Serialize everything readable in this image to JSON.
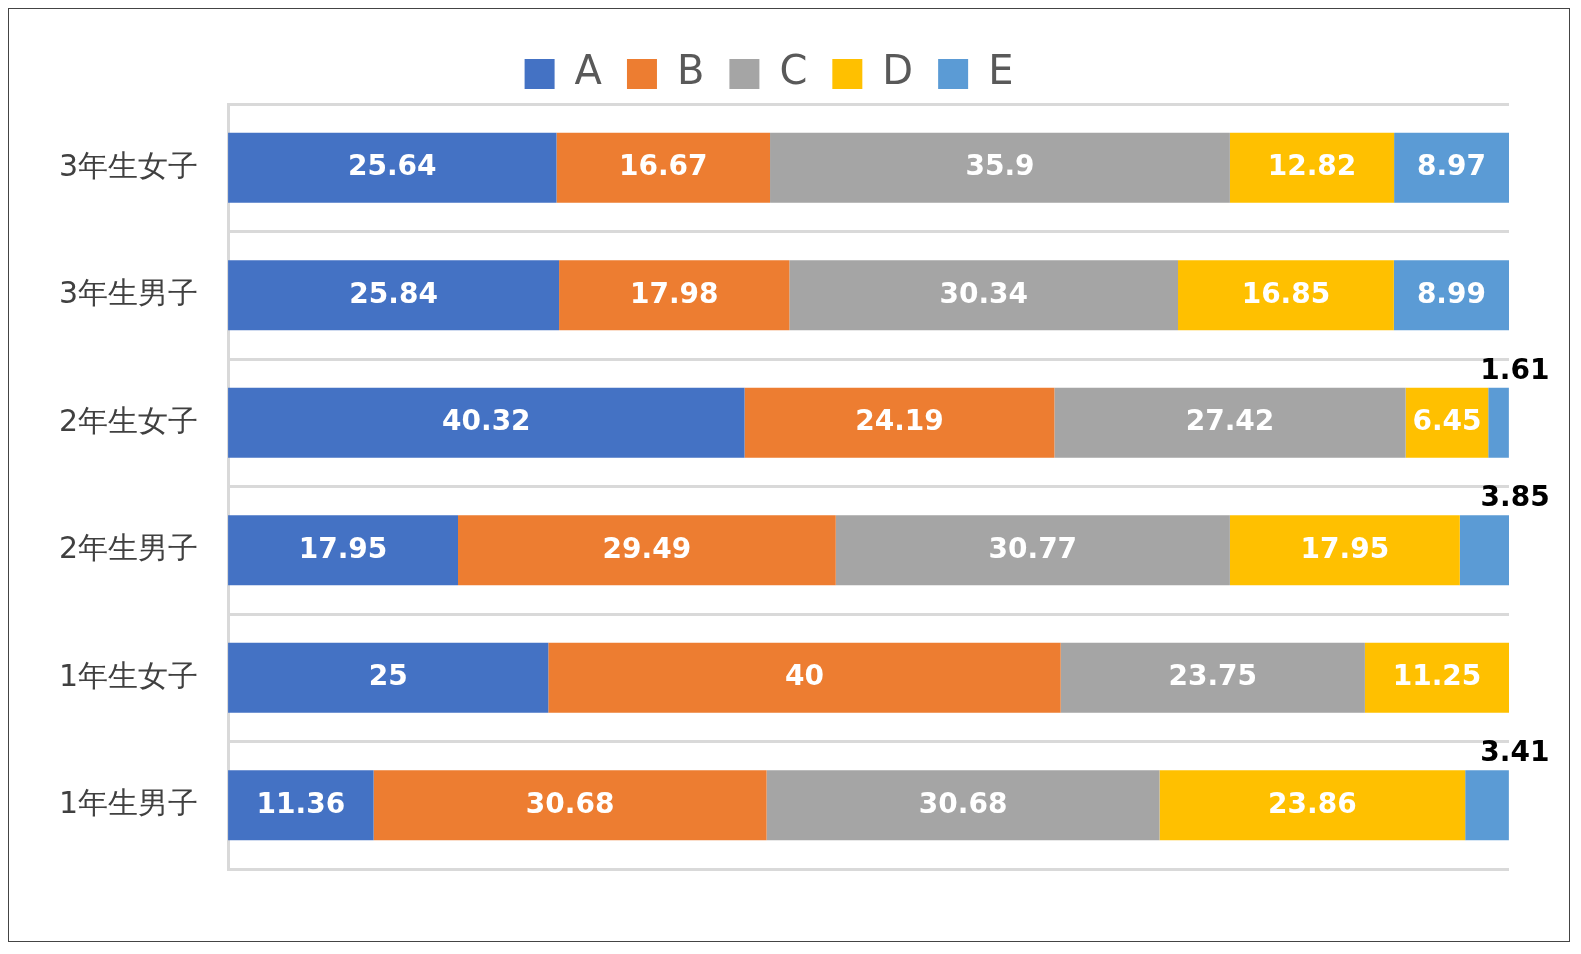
{
  "chart_data": {
    "type": "bar",
    "orientation": "horizontal",
    "stacked": true,
    "categories": [
      "3年生女子",
      "3年生男子",
      "2年生女子",
      "2年生男子",
      "1年生女子",
      "1年生男子"
    ],
    "series": [
      {
        "name": "A",
        "color": "#4472c4",
        "values": [
          25.64,
          25.84,
          40.32,
          17.95,
          25,
          11.36
        ]
      },
      {
        "name": "B",
        "color": "#ed7d31",
        "values": [
          16.67,
          17.98,
          24.19,
          29.49,
          40,
          30.68
        ]
      },
      {
        "name": "C",
        "color": "#a5a5a5",
        "values": [
          35.9,
          30.34,
          27.42,
          30.77,
          23.75,
          30.68
        ]
      },
      {
        "name": "D",
        "color": "#ffc000",
        "values": [
          12.82,
          16.85,
          6.45,
          17.95,
          11.25,
          23.86
        ]
      },
      {
        "name": "E",
        "color": "#5b9bd5",
        "values": [
          8.97,
          8.99,
          1.61,
          3.85,
          null,
          3.41
        ]
      }
    ],
    "xlim": [
      0,
      100
    ],
    "tick_labels": "y",
    "grid": "y",
    "legend": "top",
    "data_labels": true
  }
}
